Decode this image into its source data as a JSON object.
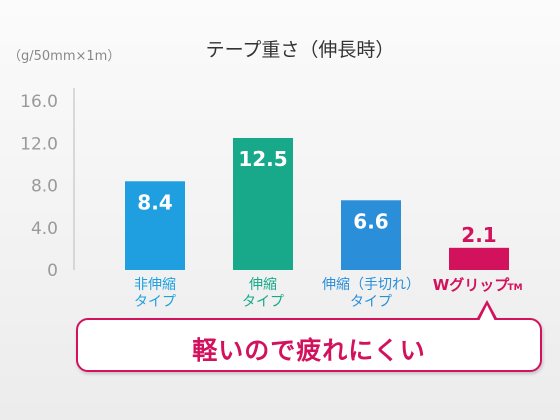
{
  "chart_data": {
    "type": "bar",
    "title": "テープ重さ（伸長時）",
    "unit_label": "（g/50mm×1m）",
    "ylim": [
      0,
      16
    ],
    "yticks": [
      "0",
      "4.0",
      "8.0",
      "12.0",
      "16.0"
    ],
    "ytick_values": [
      0,
      4,
      8,
      12,
      16
    ],
    "grid": false,
    "categories": [
      {
        "line1": "非伸縮",
        "line2": "タイプ"
      },
      {
        "line1": "伸縮",
        "line2": "タイプ"
      },
      {
        "line1": "伸縮（手切れ）",
        "line2": "タイプ"
      },
      {
        "line1": "Wグリップ",
        "tm": "TM"
      }
    ],
    "values": [
      8.4,
      12.5,
      6.6,
      2.1
    ],
    "value_labels": [
      "8.4",
      "12.5",
      "6.6",
      "2.1"
    ],
    "colors": [
      "#1f9fe0",
      "#17a98a",
      "#2a8fd8",
      "#d2125c"
    ],
    "label_colors": [
      "#1f9fe0",
      "#17a98a",
      "#2a8fd8",
      "#d2125c"
    ]
  },
  "callout": {
    "text": "軽いので疲れにくい",
    "color": "#d2125c"
  }
}
